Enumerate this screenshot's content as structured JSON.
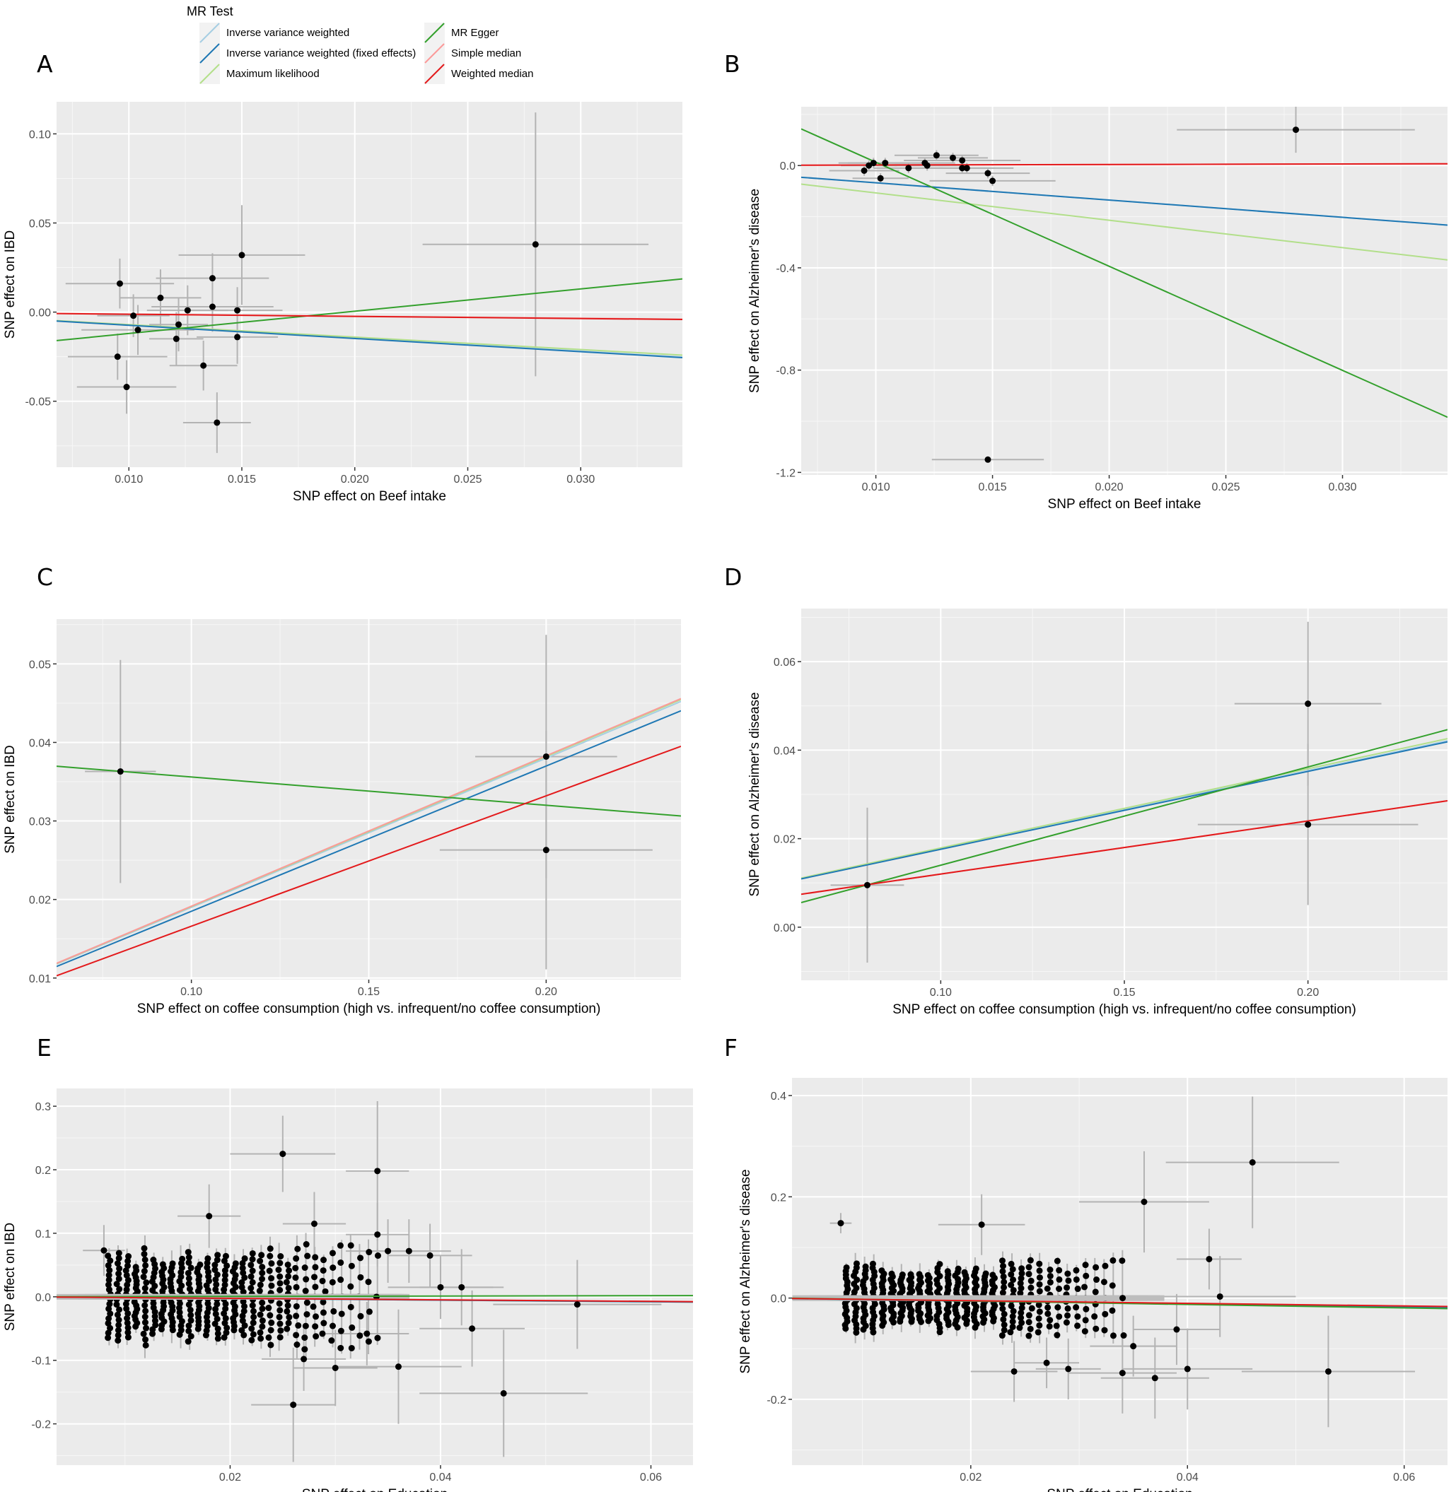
{
  "legend": {
    "title": "MR Test",
    "items": [
      {
        "name": "Inverse variance weighted",
        "color": "#a6cee3"
      },
      {
        "name": "Inverse variance weighted (fixed effects)",
        "color": "#1f78b4"
      },
      {
        "name": "Maximum likelihood",
        "color": "#b2df8a"
      },
      {
        "name": "MR Egger",
        "color": "#33a02c"
      },
      {
        "name": "Simple median",
        "color": "#fb9a99"
      },
      {
        "name": "Weighted median",
        "color": "#e31a1c"
      }
    ]
  },
  "chart_data": [
    {
      "panel": "A",
      "type": "scatter",
      "xlabel": "SNP effect on Beef intake",
      "ylabel": "SNP effect on IBD",
      "xlim": [
        0.0068,
        0.0345
      ],
      "ylim": [
        -0.087,
        0.118
      ],
      "xticks": [
        0.01,
        0.015,
        0.02,
        0.025,
        0.03
      ],
      "xtick_labels": [
        "0.010",
        "0.015",
        "0.020",
        "0.025",
        "0.030"
      ],
      "yticks": [
        -0.05,
        0,
        0.05,
        0.1
      ],
      "ytick_labels": [
        "-0.05",
        "0.00",
        "0.05",
        "0.10"
      ],
      "points": [
        {
          "x": 0.0096,
          "y": 0.016,
          "xe": 0.0024,
          "ye": 0.014
        },
        {
          "x": 0.0102,
          "y": -0.002,
          "xe": 0.0016,
          "ye": 0.012
        },
        {
          "x": 0.0104,
          "y": -0.01,
          "xe": 0.0025,
          "ye": 0.014
        },
        {
          "x": 0.0095,
          "y": -0.025,
          "xe": 0.0022,
          "ye": 0.013
        },
        {
          "x": 0.0099,
          "y": -0.042,
          "xe": 0.0022,
          "ye": 0.015
        },
        {
          "x": 0.0114,
          "y": 0.008,
          "xe": 0.0018,
          "ye": 0.016
        },
        {
          "x": 0.0121,
          "y": -0.015,
          "xe": 0.0012,
          "ye": 0.015
        },
        {
          "x": 0.0122,
          "y": -0.007,
          "xe": 0.0013,
          "ye": 0.015
        },
        {
          "x": 0.0126,
          "y": 0.001,
          "xe": 0.0018,
          "ye": 0.014
        },
        {
          "x": 0.0133,
          "y": -0.03,
          "xe": 0.0015,
          "ye": 0.014
        },
        {
          "x": 0.0137,
          "y": 0.019,
          "xe": 0.0025,
          "ye": 0.014
        },
        {
          "x": 0.0137,
          "y": 0.003,
          "xe": 0.0027,
          "ye": 0.014
        },
        {
          "x": 0.0139,
          "y": -0.062,
          "xe": 0.0015,
          "ye": 0.017
        },
        {
          "x": 0.0148,
          "y": 0.001,
          "xe": 0.002,
          "ye": 0.013
        },
        {
          "x": 0.0148,
          "y": -0.014,
          "xe": 0.0018,
          "ye": 0.015
        },
        {
          "x": 0.015,
          "y": 0.032,
          "xe": 0.0028,
          "ye": 0.028
        },
        {
          "x": 0.028,
          "y": 0.038,
          "xe": 0.005,
          "ye": 0.074
        }
      ],
      "lines": [
        {
          "method": "Inverse variance weighted",
          "slope": -0.73,
          "intercept": 0
        },
        {
          "method": "Inverse variance weighted (fixed effects)",
          "slope": -0.74,
          "intercept": 0
        },
        {
          "method": "Maximum likelihood",
          "slope": -0.7,
          "intercept": 0
        },
        {
          "method": "MR Egger",
          "slope": 1.25,
          "intercept": -0.0245
        },
        {
          "method": "Simple median",
          "slope": -0.115,
          "intercept": 0
        },
        {
          "method": "Weighted median",
          "slope": -0.12,
          "intercept": 0
        }
      ]
    },
    {
      "panel": "B",
      "type": "scatter",
      "xlabel": "SNP effect on Beef intake",
      "ylabel": "SNP effect on Alzheimer's disease",
      "xlim": [
        0.0068,
        0.0345
      ],
      "ylim": [
        -1.21,
        0.23
      ],
      "xticks": [
        0.01,
        0.015,
        0.02,
        0.025,
        0.03
      ],
      "xtick_labels": [
        "0.010",
        "0.015",
        "0.020",
        "0.025",
        "0.030"
      ],
      "yticks": [
        -1.2,
        -0.8,
        -0.4,
        0
      ],
      "ytick_labels": [
        "-1.2",
        "-0.8",
        "-0.4",
        "0.0"
      ],
      "points": [
        {
          "x": 0.0095,
          "y": -0.02,
          "xe": 0.0015,
          "ye": 0.02
        },
        {
          "x": 0.0097,
          "y": 0.0,
          "xe": 0.0012,
          "ye": 0.02
        },
        {
          "x": 0.0099,
          "y": 0.01,
          "xe": 0.0015,
          "ye": 0.02
        },
        {
          "x": 0.0102,
          "y": -0.05,
          "xe": 0.0012,
          "ye": 0.02
        },
        {
          "x": 0.0104,
          "y": 0.01,
          "xe": 0.0016,
          "ye": 0.02
        },
        {
          "x": 0.0114,
          "y": -0.01,
          "xe": 0.0015,
          "ye": 0.02
        },
        {
          "x": 0.0121,
          "y": 0.01,
          "xe": 0.0013,
          "ye": 0.02
        },
        {
          "x": 0.0122,
          "y": 0.0,
          "xe": 0.0014,
          "ye": 0.02
        },
        {
          "x": 0.0126,
          "y": 0.04,
          "xe": 0.0018,
          "ye": 0.02
        },
        {
          "x": 0.0133,
          "y": 0.03,
          "xe": 0.0015,
          "ye": 0.02
        },
        {
          "x": 0.0137,
          "y": 0.02,
          "xe": 0.0025,
          "ye": 0.02
        },
        {
          "x": 0.0137,
          "y": -0.01,
          "xe": 0.0022,
          "ye": 0.02
        },
        {
          "x": 0.0139,
          "y": -0.01,
          "xe": 0.0012,
          "ye": 0.02
        },
        {
          "x": 0.0148,
          "y": -0.03,
          "xe": 0.0018,
          "ye": 0.02
        },
        {
          "x": 0.015,
          "y": -0.06,
          "xe": 0.0027,
          "ye": 0.02
        },
        {
          "x": 0.0148,
          "y": -1.15,
          "xe": 0.0024,
          "ye": 0.0
        },
        {
          "x": 0.028,
          "y": 0.14,
          "xe": 0.0051,
          "ye": 0.09
        }
      ],
      "lines": [
        {
          "method": "Inverse variance weighted",
          "slope": -6.75,
          "intercept": 0
        },
        {
          "method": "Inverse variance weighted (fixed effects)",
          "slope": -6.75,
          "intercept": 0
        },
        {
          "method": "Maximum likelihood",
          "slope": -10.7,
          "intercept": 0
        },
        {
          "method": "MR Egger",
          "slope": -40.7,
          "intercept": 0.42
        },
        {
          "method": "Simple median",
          "slope": 0.2,
          "intercept": 0
        },
        {
          "method": "Weighted median",
          "slope": 0.2,
          "intercept": 0
        }
      ]
    },
    {
      "panel": "C",
      "type": "scatter",
      "xlabel": "SNP effect on coffee consumption (high vs. infrequent/no coffee consumption)",
      "ylabel": "SNP effect on IBD",
      "xlim": [
        0.062,
        0.238
      ],
      "ylim": [
        0.0098,
        0.0557
      ],
      "xticks": [
        0.1,
        0.15,
        0.2
      ],
      "xtick_labels": [
        "0.10",
        "0.15",
        "0.20"
      ],
      "yticks": [
        0.01,
        0.02,
        0.03,
        0.04,
        0.05
      ],
      "ytick_labels": [
        "0.01",
        "0.02",
        "0.03",
        "0.04",
        "0.05"
      ],
      "points": [
        {
          "x": 0.08,
          "y": 0.0363,
          "xe": 0.01,
          "ye": 0.0142
        },
        {
          "x": 0.2,
          "y": 0.0382,
          "xe": 0.02,
          "ye": 0.0155
        },
        {
          "x": 0.2,
          "y": 0.0263,
          "xe": 0.03,
          "ye": 0.0152
        }
      ],
      "lines": [
        {
          "method": "Inverse variance weighted",
          "slope": 0.19,
          "intercept": 0
        },
        {
          "method": "Inverse variance weighted (fixed effects)",
          "slope": 0.185,
          "intercept": 0
        },
        {
          "method": "Maximum likelihood",
          "slope": 0.191,
          "intercept": 0
        },
        {
          "method": "MR Egger",
          "slope": -0.036,
          "intercept": 0.0392
        },
        {
          "method": "Simple median",
          "slope": 0.1915,
          "intercept": 0
        },
        {
          "method": "Weighted median",
          "slope": 0.166,
          "intercept": 0
        }
      ]
    },
    {
      "panel": "D",
      "type": "scatter",
      "xlabel": "SNP effect on coffee consumption (high vs. infrequent/no coffee consumption)",
      "ylabel": "SNP effect on Alzheimer's disease",
      "xlim": [
        0.062,
        0.238
      ],
      "ylim": [
        -0.012,
        0.072
      ],
      "xticks": [
        0.1,
        0.15,
        0.2
      ],
      "xtick_labels": [
        "0.10",
        "0.15",
        "0.20"
      ],
      "yticks": [
        0,
        0.02,
        0.04,
        0.06
      ],
      "ytick_labels": [
        "0.00",
        "0.02",
        "0.04",
        "0.06"
      ],
      "points": [
        {
          "x": 0.08,
          "y": 0.0095,
          "xe": 0.01,
          "ye": 0.0175
        },
        {
          "x": 0.2,
          "y": 0.0505,
          "xe": 0.02,
          "ye": 0.0185
        },
        {
          "x": 0.2,
          "y": 0.0232,
          "xe": 0.03,
          "ye": 0.0182
        }
      ],
      "lines": [
        {
          "method": "Inverse variance weighted",
          "slope": 0.177,
          "intercept": 0
        },
        {
          "method": "Inverse variance weighted (fixed effects)",
          "slope": 0.176,
          "intercept": 0
        },
        {
          "method": "Maximum likelihood",
          "slope": 0.179,
          "intercept": 0
        },
        {
          "method": "MR Egger",
          "slope": 0.222,
          "intercept": -0.0082
        },
        {
          "method": "Simple median",
          "slope": 0.12,
          "intercept": 0
        },
        {
          "method": "Weighted median",
          "slope": 0.12,
          "intercept": 0
        }
      ]
    },
    {
      "panel": "E",
      "type": "scatter",
      "xlabel": "SNP effect on Education",
      "ylabel": "SNP effect on IBD",
      "xlim": [
        0.0035,
        0.064
      ],
      "ylim": [
        -0.265,
        0.328
      ],
      "xticks": [
        0.02,
        0.04,
        0.06
      ],
      "xtick_labels": [
        "0.02",
        "0.04",
        "0.06"
      ],
      "yticks": [
        -0.2,
        -0.1,
        0,
        0.1,
        0.2,
        0.3
      ],
      "ytick_labels": [
        "-0.2",
        "-0.1",
        "0.0",
        "0.1",
        "0.2",
        "0.3"
      ],
      "points": [
        {
          "x": 0.025,
          "y": 0.225,
          "xe": 0.005,
          "ye": 0.06
        },
        {
          "x": 0.034,
          "y": 0.198,
          "xe": 0.003,
          "ye": 0.11
        },
        {
          "x": 0.018,
          "y": 0.127,
          "xe": 0.003,
          "ye": 0.05
        },
        {
          "x": 0.028,
          "y": 0.115,
          "xe": 0.003,
          "ye": 0.05
        },
        {
          "x": 0.034,
          "y": 0.098,
          "xe": 0.003,
          "ye": 0.05
        },
        {
          "x": 0.035,
          "y": 0.072,
          "xe": 0.004,
          "ye": 0.05
        },
        {
          "x": 0.037,
          "y": 0.072,
          "xe": 0.004,
          "ye": 0.05
        },
        {
          "x": 0.039,
          "y": 0.065,
          "xe": 0.004,
          "ye": 0.05
        },
        {
          "x": 0.04,
          "y": 0.015,
          "xe": 0.005,
          "ye": 0.05
        },
        {
          "x": 0.042,
          "y": 0.015,
          "xe": 0.004,
          "ye": 0.06
        },
        {
          "x": 0.043,
          "y": -0.05,
          "xe": 0.005,
          "ye": 0.06
        },
        {
          "x": 0.053,
          "y": -0.012,
          "xe": 0.008,
          "ye": 0.07
        },
        {
          "x": 0.046,
          "y": -0.152,
          "xe": 0.008,
          "ye": 0.1
        },
        {
          "x": 0.026,
          "y": -0.17,
          "xe": 0.004,
          "ye": 0.09
        },
        {
          "x": 0.036,
          "y": -0.11,
          "xe": 0.006,
          "ye": 0.09
        },
        {
          "x": 0.033,
          "y": -0.058,
          "xe": 0.004,
          "ye": 0.05
        },
        {
          "x": 0.03,
          "y": -0.112,
          "xe": 0.004,
          "ye": 0.06
        },
        {
          "x": 0.027,
          "y": -0.098,
          "xe": 0.004,
          "ye": 0.05
        },
        {
          "x": 0.008,
          "y": 0.073,
          "xe": 0.002,
          "ye": 0.04
        }
      ],
      "lines": [
        {
          "method": "Inverse variance weighted",
          "slope": -0.13,
          "intercept": 0
        },
        {
          "method": "Inverse variance weighted (fixed effects)",
          "slope": -0.13,
          "intercept": 0
        },
        {
          "method": "Maximum likelihood",
          "slope": -0.13,
          "intercept": 0
        },
        {
          "method": "MR Egger",
          "slope": 0.03,
          "intercept": 0
        },
        {
          "method": "Simple median",
          "slope": -0.12,
          "intercept": 0
        },
        {
          "method": "Weighted median",
          "slope": -0.12,
          "intercept": 0
        }
      ]
    },
    {
      "panel": "F",
      "type": "scatter",
      "xlabel": "SNP effect on Education",
      "ylabel": "SNP effect on Alzheimer's disease",
      "xlim": [
        0.0035,
        0.064
      ],
      "ylim": [
        -0.33,
        0.435
      ],
      "xticks": [
        0.02,
        0.04,
        0.06
      ],
      "xtick_labels": [
        "0.02",
        "0.04",
        "0.06"
      ],
      "yticks": [
        -0.2,
        0,
        0.2,
        0.4
      ],
      "ytick_labels": [
        "-0.2",
        "0.0",
        "0.2",
        "0.4"
      ],
      "points": [
        {
          "x": 0.046,
          "y": 0.268,
          "xe": 0.008,
          "ye": 0.13
        },
        {
          "x": 0.036,
          "y": 0.19,
          "xe": 0.006,
          "ye": 0.1
        },
        {
          "x": 0.008,
          "y": 0.148,
          "xe": 0.001,
          "ye": 0.02
        },
        {
          "x": 0.021,
          "y": 0.145,
          "xe": 0.004,
          "ye": 0.06
        },
        {
          "x": 0.042,
          "y": 0.077,
          "xe": 0.003,
          "ye": 0.06
        },
        {
          "x": 0.043,
          "y": 0.003,
          "xe": 0.007,
          "ye": 0.08
        },
        {
          "x": 0.053,
          "y": -0.145,
          "xe": 0.008,
          "ye": 0.11
        },
        {
          "x": 0.037,
          "y": -0.158,
          "xe": 0.005,
          "ye": 0.08
        },
        {
          "x": 0.04,
          "y": -0.14,
          "xe": 0.006,
          "ye": 0.08
        },
        {
          "x": 0.034,
          "y": -0.148,
          "xe": 0.005,
          "ye": 0.08
        },
        {
          "x": 0.039,
          "y": -0.062,
          "xe": 0.004,
          "ye": 0.07
        },
        {
          "x": 0.035,
          "y": -0.095,
          "xe": 0.004,
          "ye": 0.06
        },
        {
          "x": 0.024,
          "y": -0.145,
          "xe": 0.004,
          "ye": 0.06
        },
        {
          "x": 0.029,
          "y": -0.14,
          "xe": 0.003,
          "ye": 0.06
        },
        {
          "x": 0.027,
          "y": -0.128,
          "xe": 0.003,
          "ye": 0.05
        }
      ],
      "lines": [
        {
          "method": "Inverse variance weighted",
          "slope": -0.3,
          "intercept": 0
        },
        {
          "method": "Inverse variance weighted (fixed effects)",
          "slope": -0.3,
          "intercept": 0
        },
        {
          "method": "Maximum likelihood",
          "slope": -0.3,
          "intercept": 0
        },
        {
          "method": "MR Egger",
          "slope": -0.34,
          "intercept": 0.001
        },
        {
          "method": "Simple median",
          "slope": -0.26,
          "intercept": 0
        },
        {
          "method": "Weighted median",
          "slope": -0.26,
          "intercept": 0
        }
      ]
    }
  ]
}
